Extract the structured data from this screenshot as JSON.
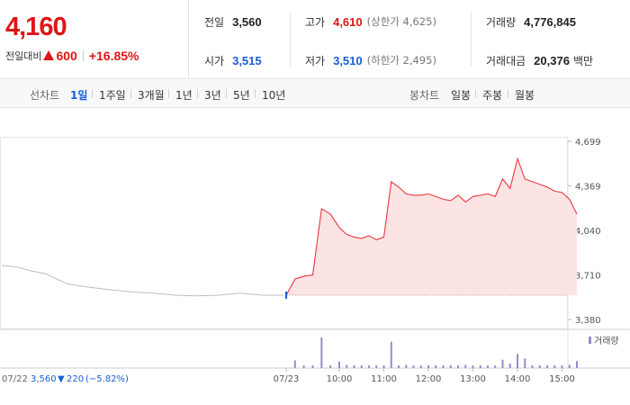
{
  "quote": {
    "price": "4,160",
    "change_label": "전일대비",
    "change_value": "600",
    "change_percent": "+16.85%",
    "prev_close_label": "전일",
    "prev_close": "3,560",
    "high_label": "고가",
    "high": "4,610",
    "upper_limit": "(상한가 4,625)",
    "volume_label": "거래량",
    "volume": "4,776,845",
    "open_label": "시가",
    "open": "3,515",
    "low_label": "저가",
    "low": "3,510",
    "lower_limit": "(하한가 2,495)",
    "turnover_label": "거래대금",
    "turnover": "20,376",
    "turnover_unit": "백만",
    "colors": {
      "up": "#e01515",
      "down": "#1a5ed6"
    }
  },
  "toolbar": {
    "line_label": "선차트",
    "line_periods": [
      "1일",
      "1주일",
      "3개월",
      "1년",
      "3년",
      "5년",
      "10년"
    ],
    "active_period": "1일",
    "candle_label": "봉차트",
    "candle_periods": [
      "일봉",
      "주봉",
      "월봉"
    ]
  },
  "chart": {
    "y_ticks": [
      "4,699",
      "4,369",
      "4,040",
      "3,710",
      "3,380"
    ],
    "x_ticks": [
      "07/23",
      "10:00",
      "11:00",
      "12:00",
      "13:00",
      "14:00",
      "15:00"
    ],
    "volume_legend": "거래량",
    "prev_day_date": "07/22",
    "prev_day_close": "3,560",
    "prev_day_change": "220",
    "prev_day_pct": "(−5.82%)",
    "colors": {
      "line": "#e8373c",
      "area": "#fde4e4",
      "prev_line": "#bdbdbd",
      "volume": "#9b8ac9",
      "down": "#1a5ed6"
    }
  },
  "chart_data": {
    "type": "line",
    "title": "",
    "ylim": [
      3380,
      4699
    ],
    "x_ticks": [
      "07/23",
      "10:00",
      "11:00",
      "12:00",
      "13:00",
      "14:00",
      "15:00"
    ],
    "series": [
      {
        "name": "07/22",
        "x": [
          "07/22 09:00",
          "07/22 09:20",
          "07/22 09:40",
          "07/22 10:00",
          "07/22 10:30",
          "07/22 11:00",
          "07/22 11:30",
          "07/22 12:00",
          "07/22 12:30",
          "07/22 13:00",
          "07/22 13:30",
          "07/22 14:00",
          "07/22 14:30",
          "07/22 15:00",
          "07/22 15:30"
        ],
        "values": [
          3780,
          3770,
          3740,
          3720,
          3645,
          3620,
          3600,
          3585,
          3575,
          3560,
          3555,
          3560,
          3575,
          3560,
          3560
        ]
      },
      {
        "name": "07/23",
        "x": [
          "09:00",
          "09:10",
          "09:20",
          "09:30",
          "09:40",
          "09:50",
          "10:00",
          "10:10",
          "10:20",
          "10:30",
          "10:40",
          "10:50",
          "11:00",
          "11:10",
          "11:20",
          "11:30",
          "11:40",
          "11:50",
          "12:00",
          "12:10",
          "12:20",
          "12:30",
          "12:40",
          "12:50",
          "13:00",
          "13:10",
          "13:20",
          "13:30",
          "13:40",
          "13:50",
          "14:00",
          "14:10",
          "14:20",
          "14:30",
          "14:40",
          "14:50",
          "15:00",
          "15:10",
          "15:20"
        ],
        "values": [
          3560,
          3680,
          3700,
          3710,
          4200,
          4160,
          4060,
          4010,
          3990,
          3980,
          4000,
          3970,
          3990,
          4400,
          4360,
          4310,
          4300,
          4300,
          4310,
          4290,
          4270,
          4260,
          4300,
          4250,
          4290,
          4300,
          4310,
          4290,
          4420,
          4350,
          4570,
          4420,
          4400,
          4380,
          4360,
          4330,
          4320,
          4270,
          4160
        ]
      }
    ]
  }
}
